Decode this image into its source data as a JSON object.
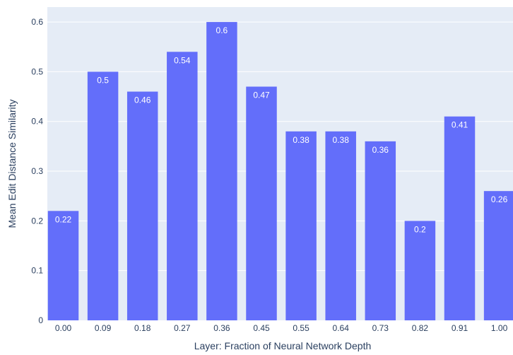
{
  "chart_data": {
    "type": "bar",
    "categories": [
      "0.00",
      "0.09",
      "0.18",
      "0.27",
      "0.36",
      "0.45",
      "0.55",
      "0.64",
      "0.73",
      "0.82",
      "0.91",
      "1.00"
    ],
    "x": [
      0.0,
      0.09,
      0.18,
      0.27,
      0.36,
      0.45,
      0.55,
      0.64,
      0.73,
      0.82,
      0.91,
      1.0
    ],
    "values": [
      0.22,
      0.5,
      0.46,
      0.54,
      0.6,
      0.47,
      0.38,
      0.38,
      0.36,
      0.2,
      0.41,
      0.26
    ],
    "value_labels": [
      "0.22",
      "0.5",
      "0.46",
      "0.54",
      "0.6",
      "0.47",
      "0.38",
      "0.38",
      "0.36",
      "0.2",
      "0.41",
      "0.26"
    ],
    "title": "",
    "xlabel": "Layer: Fraction of Neural Network Depth",
    "ylabel": "Mean Edit Distance Similarity",
    "ylim": [
      0,
      0.63
    ],
    "yticks": [
      0,
      0.1,
      0.2,
      0.3,
      0.4,
      0.5,
      0.6
    ],
    "ytick_labels": [
      "0",
      "0.1",
      "0.2",
      "0.3",
      "0.4",
      "0.5",
      "0.6"
    ],
    "grid": true,
    "colors": {
      "bar": "#636efa",
      "plot_bg": "#e5ecf6",
      "grid": "#ffffff",
      "text": "#2a3f5f"
    }
  }
}
